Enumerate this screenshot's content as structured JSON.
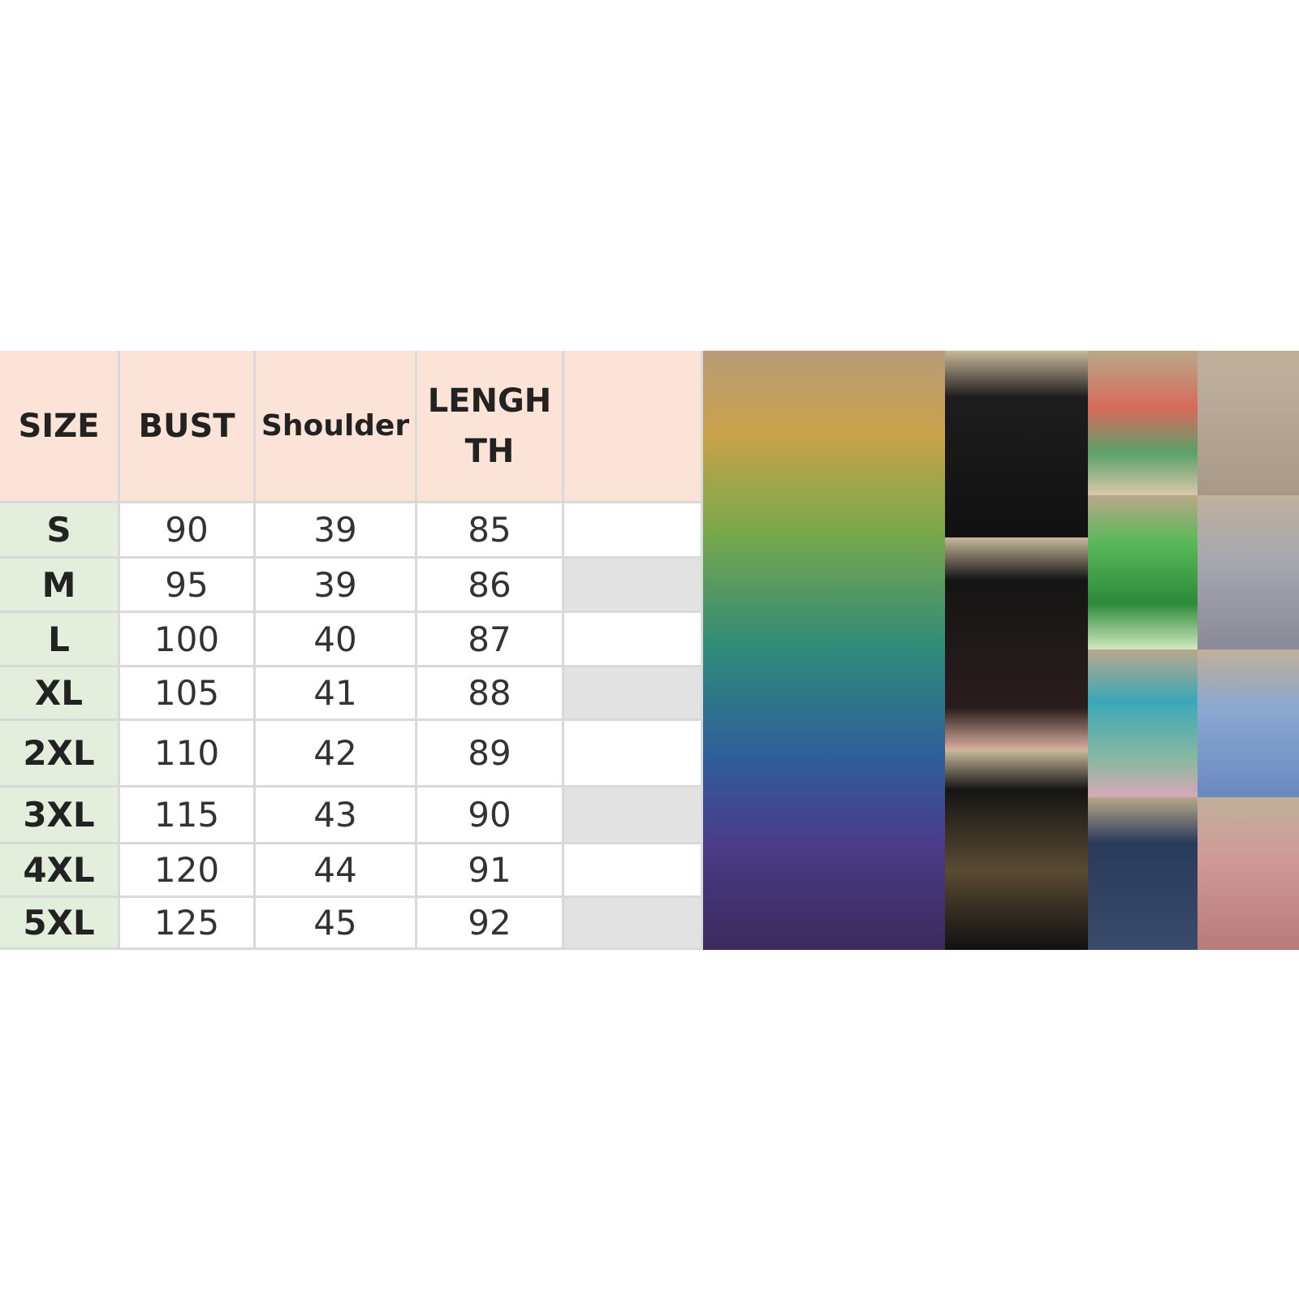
{
  "table": {
    "headers": [
      "SIZE",
      "BUST",
      "Shoulder",
      "LENGH TH"
    ],
    "rows": [
      [
        "S",
        90,
        39,
        85
      ],
      [
        "M",
        95,
        39,
        86
      ],
      [
        "L",
        100,
        40,
        87
      ],
      [
        "XL",
        105,
        41,
        88
      ],
      [
        "2XL",
        110,
        42,
        89
      ],
      [
        "3XL",
        115,
        43,
        90
      ],
      [
        "4XL",
        120,
        44,
        91
      ],
      [
        "5XL",
        125,
        45,
        92
      ]
    ]
  }
}
